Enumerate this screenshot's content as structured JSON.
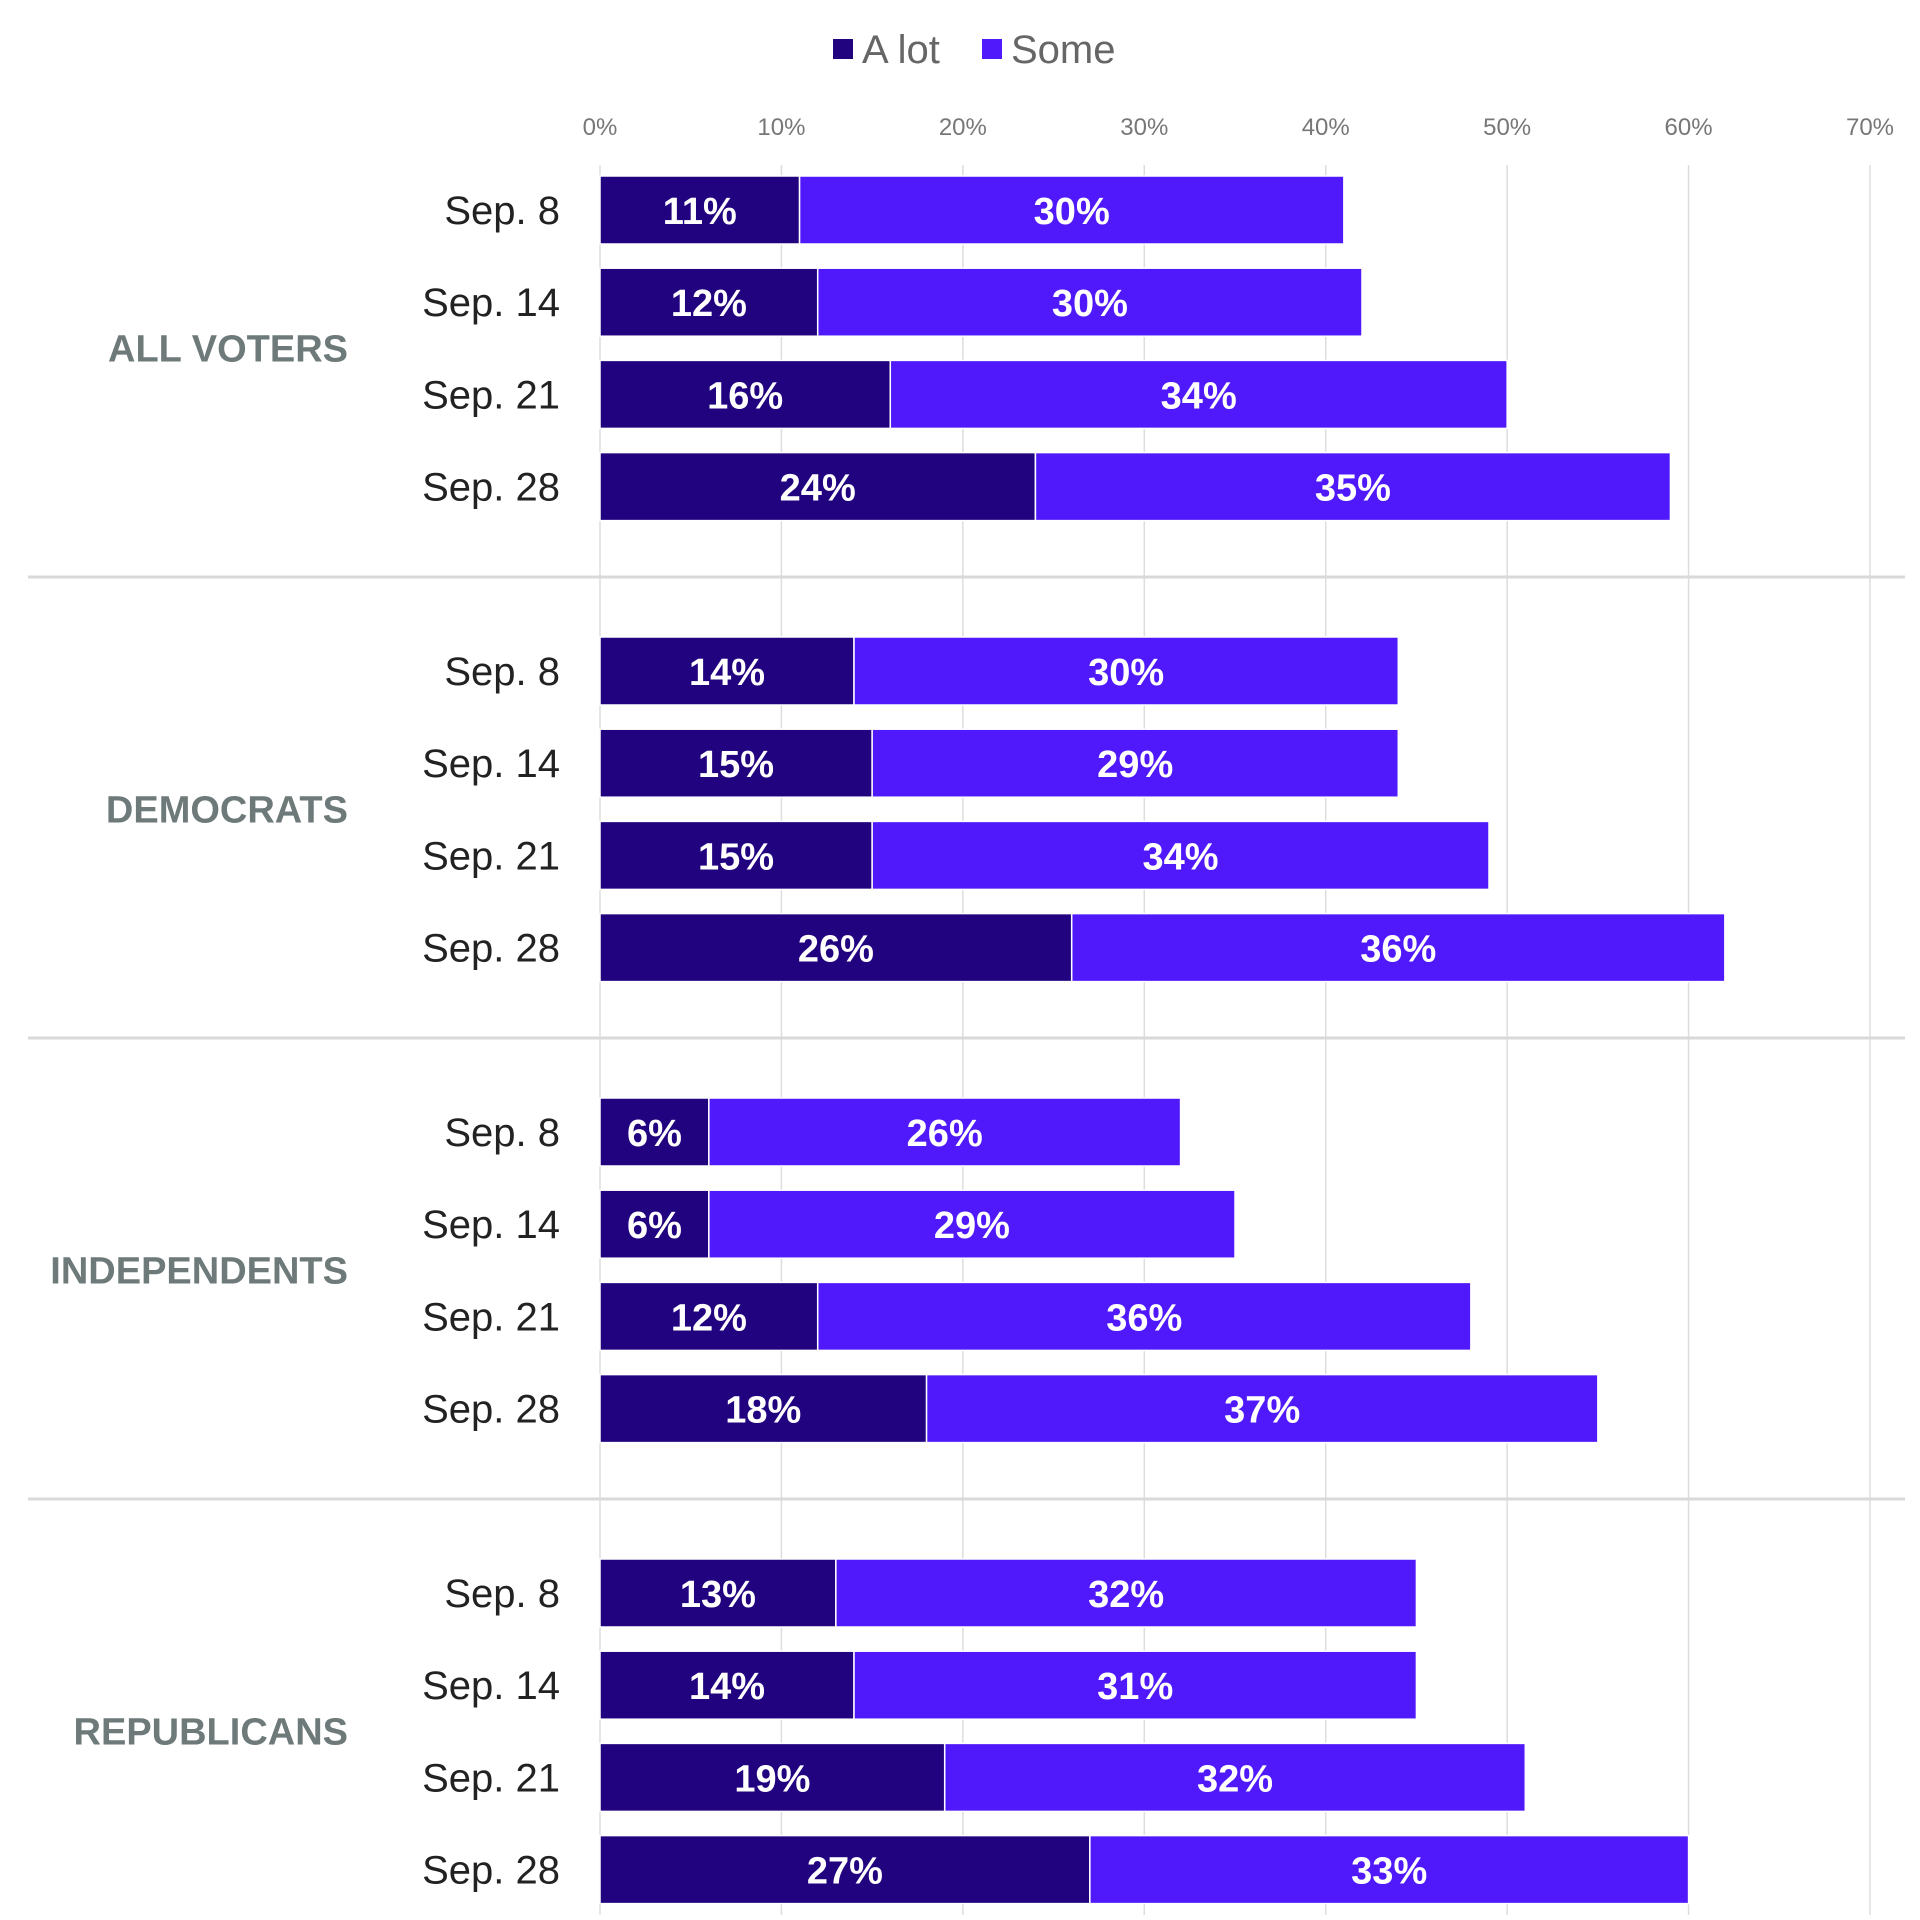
{
  "chart_data": {
    "type": "bar",
    "orientation": "horizontal",
    "stacked": true,
    "xlim": [
      0,
      70
    ],
    "x_ticks": [
      "0%",
      "10%",
      "20%",
      "30%",
      "40%",
      "50%",
      "60%",
      "70%"
    ],
    "grid": true,
    "legend_position": "top",
    "categories": [
      "Sep. 8",
      "Sep. 14",
      "Sep. 21",
      "Sep. 28"
    ],
    "series": [
      {
        "name": "A lot",
        "color": "#22037f"
      },
      {
        "name": "Some",
        "color": "#5019fb"
      }
    ],
    "groups": [
      {
        "label": "ALL VOTERS",
        "values": [
          [
            11,
            30
          ],
          [
            12,
            30
          ],
          [
            16,
            34
          ],
          [
            24,
            35
          ]
        ],
        "data_labels": [
          [
            "11%",
            "30%"
          ],
          [
            "12%",
            "30%"
          ],
          [
            "16%",
            "34%"
          ],
          [
            "24%",
            "35%"
          ]
        ]
      },
      {
        "label": "DEMOCRATS",
        "values": [
          [
            14,
            30
          ],
          [
            15,
            29
          ],
          [
            15,
            34
          ],
          [
            26,
            36
          ]
        ],
        "data_labels": [
          [
            "14%",
            "30%"
          ],
          [
            "15%",
            "29%"
          ],
          [
            "15%",
            "34%"
          ],
          [
            "26%",
            "36%"
          ]
        ]
      },
      {
        "label": "INDEPENDENTS",
        "values": [
          [
            6,
            26
          ],
          [
            6,
            29
          ],
          [
            12,
            36
          ],
          [
            18,
            37
          ]
        ],
        "data_labels": [
          [
            "6%",
            "26%"
          ],
          [
            "6%",
            "29%"
          ],
          [
            "12%",
            "36%"
          ],
          [
            "18%",
            "37%"
          ]
        ]
      },
      {
        "label": "REPUBLICANS",
        "values": [
          [
            13,
            32
          ],
          [
            14,
            31
          ],
          [
            19,
            32
          ],
          [
            27,
            33
          ]
        ],
        "data_labels": [
          [
            "13%",
            "32%"
          ],
          [
            "14%",
            "31%"
          ],
          [
            "19%",
            "32%"
          ],
          [
            "27%",
            "33%"
          ]
        ]
      }
    ]
  }
}
